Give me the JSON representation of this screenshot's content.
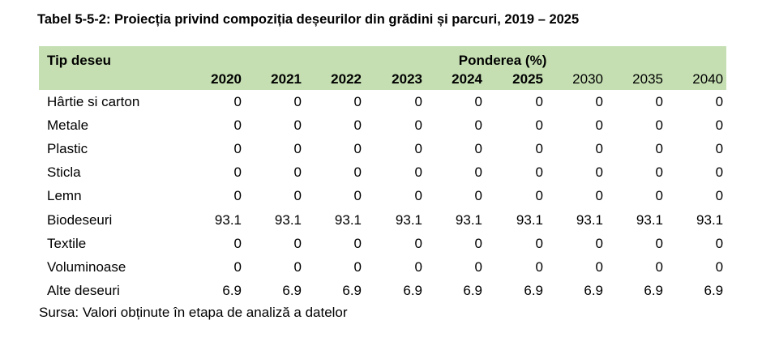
{
  "title": "Tabel 5-5-2: Proiecția privind compoziția deșeurilor din grădini și parcuri, 2019 – 2025",
  "header": {
    "type_label": "Tip deseu",
    "share_label": "Ponderea (%)",
    "years": [
      "2020",
      "2021",
      "2022",
      "2023",
      "2024",
      "2025",
      "2030",
      "2035",
      "2040"
    ]
  },
  "rows": [
    {
      "name": "Hârtie si carton",
      "values": [
        "0",
        "0",
        "0",
        "0",
        "0",
        "0",
        "0",
        "0",
        "0"
      ]
    },
    {
      "name": "Metale",
      "values": [
        "0",
        "0",
        "0",
        "0",
        "0",
        "0",
        "0",
        "0",
        "0"
      ]
    },
    {
      "name": "Plastic",
      "values": [
        "0",
        "0",
        "0",
        "0",
        "0",
        "0",
        "0",
        "0",
        "0"
      ]
    },
    {
      "name": "Sticla",
      "values": [
        "0",
        "0",
        "0",
        "0",
        "0",
        "0",
        "0",
        "0",
        "0"
      ]
    },
    {
      "name": "Lemn",
      "values": [
        "0",
        "0",
        "0",
        "0",
        "0",
        "0",
        "0",
        "0",
        "0"
      ]
    },
    {
      "name": "Biodeseuri",
      "values": [
        "93.1",
        "93.1",
        "93.1",
        "93.1",
        "93.1",
        "93.1",
        "93.1",
        "93.1",
        "93.1"
      ]
    },
    {
      "name": "Textile",
      "values": [
        "0",
        "0",
        "0",
        "0",
        "0",
        "0",
        "0",
        "0",
        "0"
      ]
    },
    {
      "name": "Voluminoase",
      "values": [
        "0",
        "0",
        "0",
        "0",
        "0",
        "0",
        "0",
        "0",
        "0"
      ]
    },
    {
      "name": "Alte deseuri",
      "values": [
        "6.9",
        "6.9",
        "6.9",
        "6.9",
        "6.9",
        "6.9",
        "6.9",
        "6.9",
        "6.9"
      ]
    }
  ],
  "source": "Sursa: Valori obținute în etapa de analiză a datelor"
}
